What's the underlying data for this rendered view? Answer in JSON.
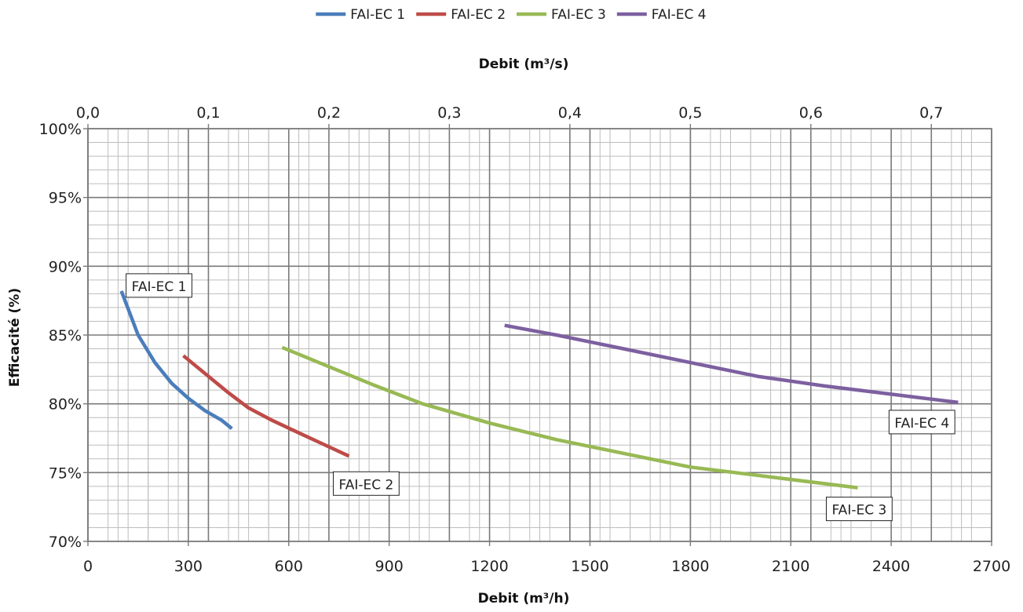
{
  "chart_data": {
    "type": "line",
    "xlabel_bottom": "Debit (m³/h)",
    "xlabel_top": "Debit (m³/s)",
    "ylabel": "Efficacité (%)",
    "xlim": [
      0,
      2700
    ],
    "ylim": [
      70,
      100
    ],
    "xticks": [
      "0",
      "300",
      "600",
      "900",
      "1200",
      "1500",
      "1800",
      "2100",
      "2400",
      "2700"
    ],
    "xticks_top": [
      "0,0",
      "0,1",
      "0,2",
      "0,3",
      "0,4",
      "0,5",
      "0,6",
      "0,7"
    ],
    "xticks_top_values": [
      0.0,
      0.1,
      0.2,
      0.3,
      0.4,
      0.5,
      0.6,
      0.7
    ],
    "yticks": [
      "70%",
      "75%",
      "80%",
      "85%",
      "90%",
      "95%",
      "100%"
    ],
    "grid": true,
    "legend_position": "top",
    "series": [
      {
        "name": "FAI-EC 1",
        "color": "#4a7ebb",
        "points": [
          [
            100,
            88.2
          ],
          [
            150,
            85.0
          ],
          [
            200,
            83.0
          ],
          [
            250,
            81.5
          ],
          [
            300,
            80.4
          ],
          [
            350,
            79.5
          ],
          [
            400,
            78.8
          ],
          [
            430,
            78.2
          ]
        ]
      },
      {
        "name": "FAI-EC 2",
        "color": "#be4b48",
        "points": [
          [
            285,
            83.5
          ],
          [
            350,
            82.2
          ],
          [
            420,
            80.8
          ],
          [
            480,
            79.7
          ],
          [
            550,
            78.8
          ],
          [
            620,
            78.0
          ],
          [
            700,
            77.1
          ],
          [
            780,
            76.2
          ]
        ]
      },
      {
        "name": "FAI-EC 3",
        "color": "#98b954",
        "points": [
          [
            580,
            84.1
          ],
          [
            700,
            82.9
          ],
          [
            850,
            81.4
          ],
          [
            1000,
            80.0
          ],
          [
            1200,
            78.6
          ],
          [
            1400,
            77.4
          ],
          [
            1600,
            76.4
          ],
          [
            1800,
            75.4
          ],
          [
            2000,
            74.8
          ],
          [
            2200,
            74.2
          ],
          [
            2300,
            73.9
          ]
        ]
      },
      {
        "name": "FAI-EC 4",
        "color": "#7d60a0",
        "points": [
          [
            1245,
            85.7
          ],
          [
            1400,
            85.0
          ],
          [
            1600,
            84.0
          ],
          [
            1800,
            83.0
          ],
          [
            2000,
            82.0
          ],
          [
            2200,
            81.3
          ],
          [
            2400,
            80.7
          ],
          [
            2600,
            80.1
          ]
        ]
      }
    ],
    "annotations": [
      {
        "text": "FAI-EC 1"
      },
      {
        "text": "FAI-EC 2"
      },
      {
        "text": "FAI-EC 3"
      },
      {
        "text": "FAI-EC 4"
      }
    ]
  }
}
